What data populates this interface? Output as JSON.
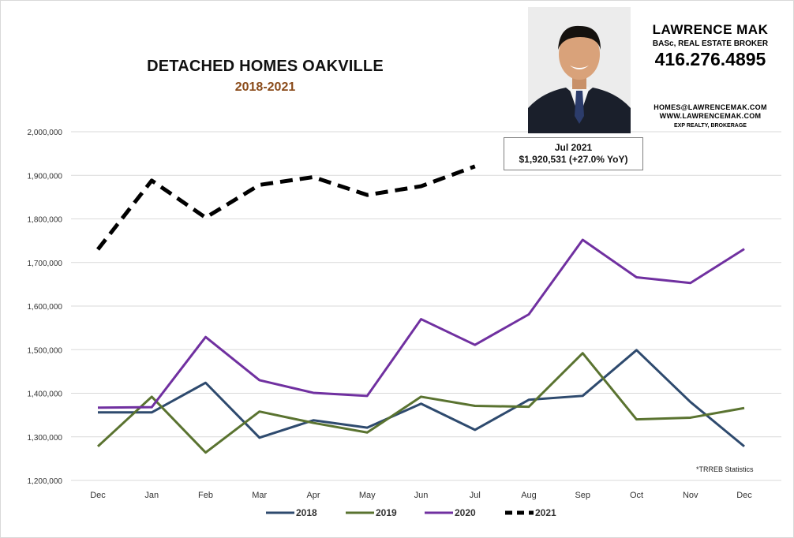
{
  "header": {
    "title": "DETACHED HOMES OAKVILLE",
    "subtitle": "2018-2021"
  },
  "contact": {
    "name": "LAWRENCE MAK",
    "credentials": "BASc, REAL ESTATE BROKER",
    "phone": "416.276.4895",
    "email": "HOMES@LAWRENCEMAK.COM",
    "website": "WWW.LAWRENCEMAK.COM",
    "brokerage": "EXP REALTY, BROKERAGE"
  },
  "callout": {
    "line1": "Jul 2021",
    "line2": "$1,920,531  (+27.0%  YoY)"
  },
  "source_note": "*TRREB Statistics",
  "chart_data": {
    "type": "line",
    "title": "DETACHED HOMES OAKVILLE",
    "subtitle": "2018-2021",
    "xlabel": "",
    "ylabel": "",
    "categories": [
      "Dec",
      "Jan",
      "Feb",
      "Mar",
      "Apr",
      "May",
      "Jun",
      "Jul",
      "Aug",
      "Sep",
      "Oct",
      "Nov",
      "Dec"
    ],
    "yticks": [
      "2,000,000",
      "1,900,000",
      "1,800,000",
      "1,700,000",
      "1,600,000",
      "1,500,000",
      "1,400,000",
      "1,300,000",
      "1,200,000"
    ],
    "ylim": [
      1200000,
      2000000
    ],
    "grid": true,
    "legend_position": "bottom",
    "series": [
      {
        "name": "2018",
        "color": "#2e4a6e",
        "dashed": false,
        "values": [
          1356000,
          1356000,
          1424000,
          1298000,
          1338000,
          1321000,
          1376000,
          1316000,
          1385000,
          1394000,
          1499000,
          1380000,
          1278000
        ]
      },
      {
        "name": "2019",
        "color": "#5a7330",
        "dashed": false,
        "values": [
          1278000,
          1392000,
          1264000,
          1358000,
          1332000,
          1310000,
          1392000,
          1371000,
          1369000,
          1492000,
          1340000,
          1344000,
          1366000
        ]
      },
      {
        "name": "2020",
        "color": "#7030a0",
        "dashed": false,
        "values": [
          1367000,
          1368000,
          1529000,
          1430000,
          1401000,
          1394000,
          1570000,
          1511000,
          1581000,
          1752000,
          1666000,
          1653000,
          1731000
        ]
      },
      {
        "name": "2021",
        "color": "#000000",
        "dashed": true,
        "values": [
          1730000,
          1888000,
          1803000,
          1878000,
          1896000,
          1855000,
          1875000,
          1920531,
          null,
          null,
          null,
          null,
          null
        ]
      }
    ],
    "annotation": "Jul 2021 $1,920,531 (+27.0% YoY)"
  }
}
